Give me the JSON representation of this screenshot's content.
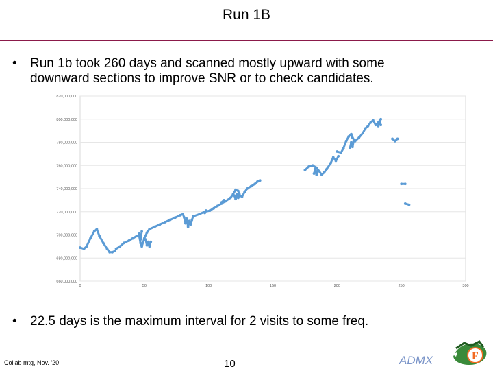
{
  "slide": {
    "title": "Run 1B",
    "bullets": [
      {
        "marker": "•",
        "lines": [
          "Run 1b took 260 days and scanned mostly upward with some",
          "downward sections to improve SNR or to check candidates."
        ]
      },
      {
        "marker": "•",
        "lines": [
          "22.5 days is the maximum interval for 2 visits to some freq."
        ]
      }
    ],
    "footer": {
      "left": "Collab mtg, Nov. '20",
      "page": "10",
      "brand": "ADMX"
    },
    "logo_icon": "gator-logo-icon"
  },
  "chart_data": {
    "type": "scatter",
    "xlim": [
      0,
      300
    ],
    "ylim": [
      660000000,
      820000000
    ],
    "x_ticks": [
      0,
      50,
      100,
      150,
      200,
      250,
      300
    ],
    "x_tick_labels": [
      "0",
      "50",
      "100",
      "150",
      "200",
      "250",
      "300"
    ],
    "y_ticks": [
      660000000,
      680000000,
      700000000,
      720000000,
      740000000,
      760000000,
      780000000,
      800000000,
      820000000
    ],
    "y_tick_labels": [
      "660,000,000",
      "680,000,000",
      "700,000,000",
      "720,000,000",
      "740,000,000",
      "760,000,000",
      "780,000,000",
      "800,000,000",
      "820,000,000"
    ],
    "grid": "horizontal",
    "color": "#5b9bd5",
    "title": "",
    "xlabel": "",
    "ylabel": "",
    "segments": [
      [
        [
          0,
          689
        ],
        [
          3,
          688
        ],
        [
          5,
          690
        ],
        [
          8,
          697
        ],
        [
          11,
          703
        ],
        [
          13,
          705
        ],
        [
          15,
          699
        ],
        [
          18,
          693
        ],
        [
          21,
          688
        ],
        [
          23,
          685
        ],
        [
          25,
          685
        ],
        [
          27,
          686
        ]
      ],
      [
        [
          28,
          688
        ],
        [
          31,
          690
        ],
        [
          34,
          693
        ],
        [
          38,
          695
        ],
        [
          41,
          697
        ],
        [
          44,
          699
        ],
        [
          46,
          699
        ],
        [
          47,
          693
        ],
        [
          48,
          690
        ],
        [
          50,
          697
        ],
        [
          52,
          702
        ],
        [
          54,
          705
        ]
      ],
      [
        [
          51,
          696
        ],
        [
          52,
          691
        ],
        [
          53,
          694
        ],
        [
          54,
          690
        ],
        [
          55,
          694
        ]
      ],
      [
        [
          46,
          701
        ],
        [
          47,
          696
        ],
        [
          48,
          703
        ]
      ],
      [
        [
          54,
          705
        ],
        [
          58,
          707
        ],
        [
          62,
          709
        ],
        [
          66,
          711
        ],
        [
          70,
          713
        ],
        [
          74,
          715
        ],
        [
          78,
          717
        ],
        [
          80,
          718
        ]
      ],
      [
        [
          80,
          718
        ],
        [
          81,
          715
        ],
        [
          82,
          710
        ],
        [
          83,
          714
        ],
        [
          84,
          707
        ],
        [
          85,
          712
        ],
        [
          86,
          709
        ],
        [
          87,
          713
        ],
        [
          88,
          716
        ]
      ],
      [
        [
          88,
          716
        ],
        [
          93,
          718
        ],
        [
          97,
          720
        ],
        [
          101,
          721
        ],
        [
          104,
          723
        ],
        [
          107,
          725
        ],
        [
          110,
          727
        ],
        [
          113,
          729
        ],
        [
          117,
          732
        ],
        [
          119,
          735
        ],
        [
          121,
          739
        ],
        [
          123,
          738
        ],
        [
          124,
          735
        ]
      ],
      [
        [
          97,
          719
        ],
        [
          98,
          721
        ]
      ],
      [
        [
          110,
          728
        ],
        [
          112,
          730
        ]
      ],
      [
        [
          120,
          734
        ],
        [
          121,
          731
        ],
        [
          122,
          735
        ],
        [
          123,
          732
        ],
        [
          124,
          734
        ],
        [
          126,
          733
        ],
        [
          128,
          737
        ],
        [
          130,
          740
        ],
        [
          133,
          742
        ],
        [
          136,
          744
        ],
        [
          138,
          746
        ],
        [
          140,
          747
        ]
      ],
      [
        [
          175,
          756
        ],
        [
          178,
          759
        ],
        [
          181,
          760
        ],
        [
          184,
          758
        ],
        [
          186,
          755
        ],
        [
          188,
          752
        ],
        [
          190,
          754
        ],
        [
          192,
          757
        ],
        [
          195,
          762
        ],
        [
          197,
          767
        ],
        [
          199,
          764
        ],
        [
          201,
          768
        ]
      ],
      [
        [
          182,
          753
        ],
        [
          183,
          757
        ],
        [
          184,
          752
        ],
        [
          185,
          756
        ]
      ],
      [
        [
          200,
          772
        ],
        [
          203,
          771
        ],
        [
          205,
          775
        ],
        [
          207,
          781
        ],
        [
          209,
          785
        ],
        [
          211,
          787
        ],
        [
          212,
          784
        ],
        [
          214,
          781
        ],
        [
          217,
          784
        ],
        [
          220,
          788
        ],
        [
          222,
          792
        ],
        [
          224,
          794
        ],
        [
          226,
          797
        ],
        [
          228,
          799
        ],
        [
          230,
          795
        ],
        [
          232,
          797
        ],
        [
          234,
          800
        ]
      ],
      [
        [
          210,
          775
        ],
        [
          211,
          780
        ],
        [
          212,
          776
        ],
        [
          213,
          782
        ]
      ],
      [
        [
          232,
          794
        ],
        [
          233,
          798
        ],
        [
          234,
          795
        ]
      ],
      [
        [
          243,
          783
        ],
        [
          245,
          781
        ],
        [
          247,
          783
        ]
      ],
      [
        [
          250,
          744
        ],
        [
          253,
          744
        ]
      ],
      [
        [
          253,
          727
        ],
        [
          256,
          726
        ]
      ]
    ]
  }
}
